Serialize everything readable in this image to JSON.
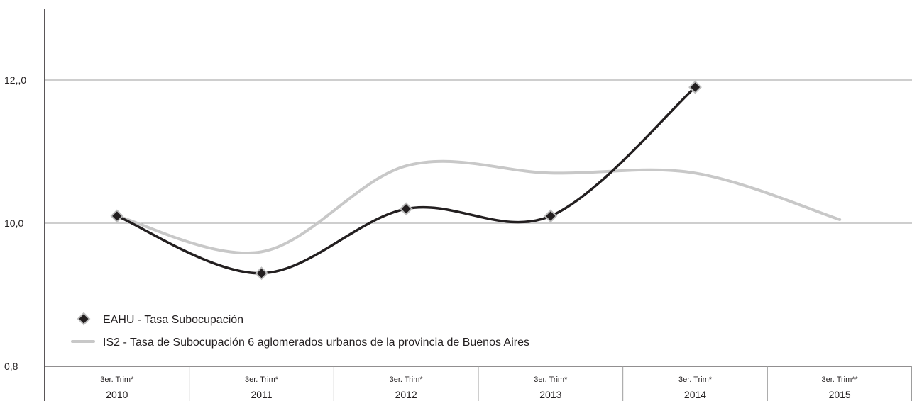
{
  "chart_data": {
    "type": "line",
    "title": "",
    "xlabel": "",
    "ylabel": "",
    "y_tick_labels": [
      "12,,0",
      "10,0",
      "0,8"
    ],
    "categories": [
      {
        "quarter": "3er. Trim*",
        "year": "2010"
      },
      {
        "quarter": "3er. Trim*",
        "year": "2011"
      },
      {
        "quarter": "3er. Trim*",
        "year": "2012"
      },
      {
        "quarter": "3er. Trim*",
        "year": "2013"
      },
      {
        "quarter": "3er. Trim*",
        "year": "2014"
      },
      {
        "quarter": "3er. Trim**",
        "year": "2015"
      }
    ],
    "grid": true,
    "legend_position": "bottom-left",
    "series": [
      {
        "name": "EAHU -  Tasa Subocupación",
        "color": "#231f20",
        "marker": "diamond",
        "values": [
          10.1,
          9.3,
          10.2,
          10.1,
          11.9,
          null
        ]
      },
      {
        "name": "IS2 - Tasa de Subocupación 6 aglomerados urbanos de la provincia de Buenos Aires",
        "color": "#c8c8c8",
        "marker": "none",
        "values": [
          10.1,
          9.6,
          10.8,
          10.7,
          10.7,
          10.05
        ]
      }
    ]
  }
}
